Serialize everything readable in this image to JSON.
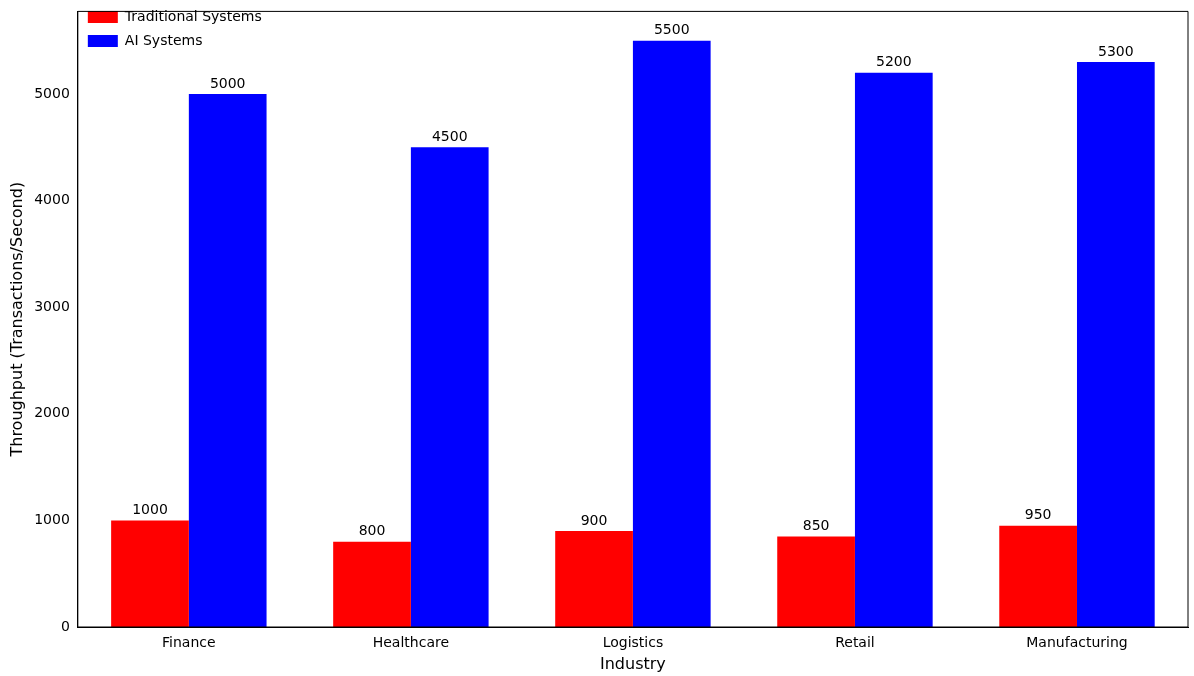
{
  "chart_data": {
    "type": "bar",
    "xlabel": "Industry",
    "ylabel": "Throughput (Transactions/Second)",
    "categories": [
      "Finance",
      "Healthcare",
      "Logistics",
      "Retail",
      "Manufacturing"
    ],
    "series": [
      {
        "name": "Traditional Systems",
        "color": "#ff0000",
        "values": [
          1000,
          800,
          900,
          850,
          950
        ]
      },
      {
        "name": "AI Systems",
        "color": "#0000ff",
        "values": [
          5000,
          4500,
          5500,
          5200,
          5300
        ]
      }
    ],
    "ylim": [
      0,
      5775
    ],
    "yticks": [
      0,
      1000,
      2000,
      3000,
      4000,
      5000
    ],
    "data_labels": true,
    "legend": "top left",
    "grid": false
  }
}
